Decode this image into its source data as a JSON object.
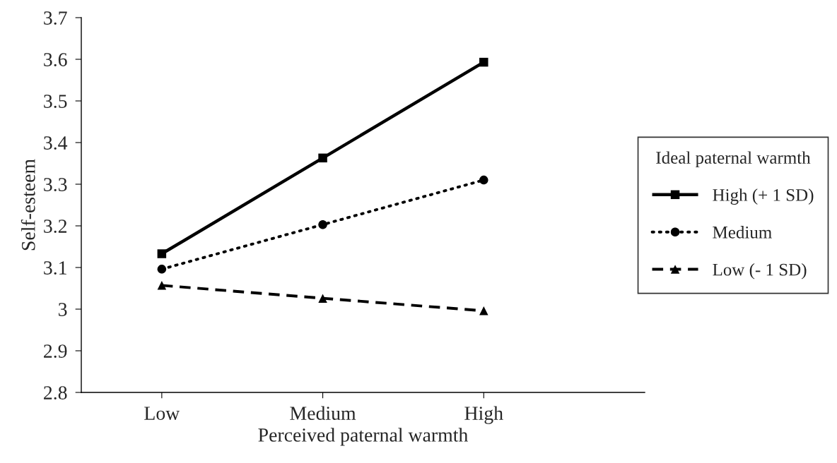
{
  "chart_data": {
    "type": "line",
    "xlabel": "Perceived paternal warmth",
    "ylabel": "Self-esteem",
    "legend_title": "Ideal paternal warmth",
    "legend": "right",
    "grid": false,
    "categories": [
      "Low",
      "Medium",
      "High"
    ],
    "ylim": [
      2.8,
      3.7
    ],
    "yticks": [
      2.8,
      2.9,
      3,
      3.1,
      3.2,
      3.3,
      3.4,
      3.5,
      3.6,
      3.7
    ],
    "series": [
      {
        "name": "High (+ 1 SD)",
        "color": "#000000",
        "marker": "square",
        "line_style": "solid",
        "values": [
          3.133,
          3.363,
          3.593
        ]
      },
      {
        "name": "Medium",
        "color": "#000000",
        "marker": "circle",
        "line_style": "dotted",
        "values": [
          3.096,
          3.203,
          3.31
        ]
      },
      {
        "name": "Low (- 1 SD)",
        "color": "#000000",
        "marker": "triangle",
        "line_style": "dashed",
        "values": [
          3.057,
          3.026,
          2.996
        ]
      }
    ]
  }
}
